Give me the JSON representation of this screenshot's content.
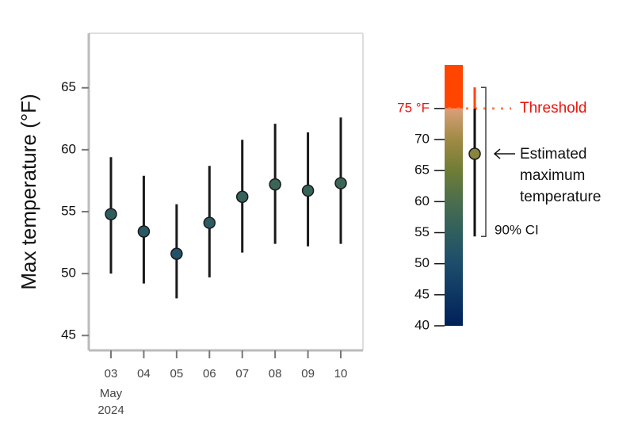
{
  "chart_data": {
    "type": "errorbar",
    "y_label": "Max temperature (°F)",
    "categories": [
      "03",
      "04",
      "05",
      "06",
      "07",
      "08",
      "09",
      "10"
    ],
    "x_sublabels": [
      "May",
      "2024"
    ],
    "values": [
      54.8,
      53.4,
      51.6,
      54.1,
      56.2,
      57.2,
      56.7,
      57.3
    ],
    "lower": [
      50.0,
      49.2,
      48.0,
      49.7,
      51.7,
      52.4,
      52.2,
      52.4
    ],
    "upper": [
      59.4,
      57.9,
      55.6,
      58.7,
      60.8,
      62.1,
      61.4,
      62.6
    ],
    "ylim": [
      43.8,
      69.4
    ],
    "yticks": [
      45,
      50,
      55,
      60,
      65
    ],
    "colormap": [
      [
        40,
        "#00205a"
      ],
      [
        50,
        "#1c4d6b"
      ],
      [
        55,
        "#2f5e5e"
      ],
      [
        60,
        "#4a6e4e"
      ],
      [
        65,
        "#6f7d35"
      ],
      [
        70,
        "#a08a45"
      ],
      [
        75,
        "#d9a07a"
      ]
    ],
    "legend": {
      "ylim": [
        40,
        82
      ],
      "yticks": [
        40,
        45,
        50,
        55,
        60,
        65,
        70,
        {
          "value": 75,
          "label": "75 °F"
        }
      ],
      "threshold": 75,
      "threshold_label": "Threshold",
      "above_color": "#ff4500",
      "example": {
        "value": 67.7,
        "lower": 54.4,
        "upper": 78.4,
        "label_lines": [
          "Estimated",
          "maximum",
          "temperature"
        ],
        "ci_label": "90% CI"
      }
    }
  }
}
